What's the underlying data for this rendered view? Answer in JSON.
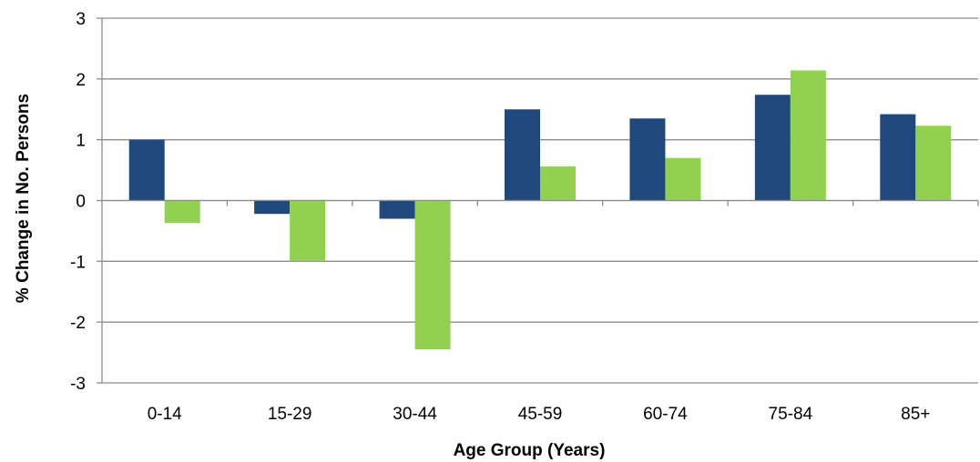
{
  "chart_data": {
    "type": "bar",
    "title": "",
    "xlabel": "Age Group (Years)",
    "ylabel": "% Change in No. Persons",
    "categories": [
      "0-14",
      "15-29",
      "30-44",
      "45-59",
      "60-74",
      "75-84",
      "85+"
    ],
    "yticks": [
      "3",
      "2",
      "1",
      "0",
      "-1",
      "-2",
      "-3"
    ],
    "ylim": [
      -3,
      3
    ],
    "grid": true,
    "legend": "none",
    "series": [
      {
        "color": "#1f497d",
        "values": [
          1.0,
          -0.22,
          -0.3,
          1.5,
          1.35,
          1.74,
          1.42
        ]
      },
      {
        "color": "#92d050",
        "values": [
          -0.37,
          -1.0,
          -2.45,
          0.56,
          0.7,
          2.14,
          1.23
        ]
      }
    ]
  }
}
